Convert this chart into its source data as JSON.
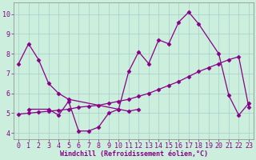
{
  "xlabel": "Windchill (Refroidissement éolien,°C)",
  "bg_color": "#cceedd",
  "line_color": "#880088",
  "xlim": [
    -0.5,
    23.5
  ],
  "ylim": [
    3.7,
    10.6
  ],
  "yticks": [
    4,
    5,
    6,
    7,
    8,
    9,
    10
  ],
  "xticks": [
    0,
    1,
    2,
    3,
    4,
    5,
    6,
    7,
    8,
    9,
    10,
    11,
    12,
    13,
    14,
    15,
    16,
    17,
    18,
    19,
    20,
    21,
    22,
    23
  ],
  "line1": {
    "x": [
      0,
      1,
      2,
      3,
      4,
      5,
      10,
      11,
      12,
      13,
      14,
      15,
      16,
      17,
      18,
      20,
      21,
      22,
      23
    ],
    "y": [
      7.5,
      8.5,
      7.7,
      6.5,
      6.0,
      5.7,
      5.2,
      7.1,
      8.1,
      7.5,
      8.7,
      8.5,
      9.6,
      10.1,
      9.5,
      8.0,
      5.9,
      4.9,
      5.5
    ]
  },
  "line2": {
    "x": [
      1,
      3,
      4,
      5,
      6,
      7,
      8,
      9,
      10,
      11,
      12
    ],
    "y": [
      5.2,
      5.2,
      4.9,
      5.6,
      4.1,
      4.1,
      4.3,
      5.0,
      5.2,
      5.1,
      5.2
    ]
  },
  "line3": {
    "x": [
      0,
      1,
      2,
      3,
      4,
      5,
      6,
      7,
      8,
      9,
      10,
      11,
      12,
      13,
      14,
      15,
      16,
      17,
      18,
      19,
      20,
      21,
      22,
      23
    ],
    "y": [
      4.95,
      5.0,
      5.05,
      5.1,
      5.15,
      5.2,
      5.3,
      5.35,
      5.4,
      5.5,
      5.6,
      5.7,
      5.85,
      6.0,
      6.2,
      6.4,
      6.6,
      6.85,
      7.1,
      7.3,
      7.5,
      7.7,
      7.85,
      5.3
    ]
  },
  "grid_color": "#aacccc",
  "tick_fontsize": 6,
  "xlabel_fontsize": 6,
  "marker": "D",
  "markersize": 2.5,
  "linewidth": 0.9
}
